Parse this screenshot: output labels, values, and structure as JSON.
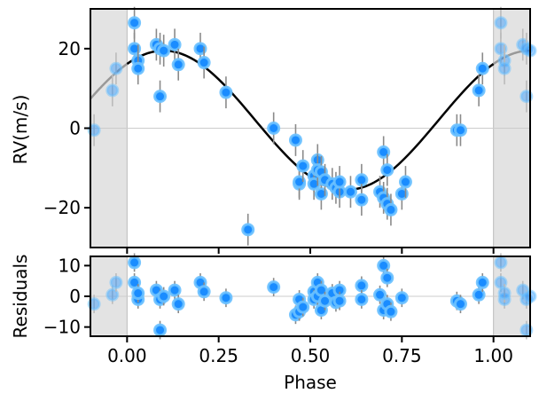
{
  "chart_data": [
    {
      "type": "scatter",
      "panel": "rv",
      "xlabel": "",
      "ylabel": "RV(m/s)",
      "xlim": [
        -0.1,
        1.1
      ],
      "ylim": [
        -30,
        30
      ],
      "grid": false,
      "shaded_regions": [
        [
          -0.1,
          0.0
        ],
        [
          1.0,
          1.1
        ]
      ],
      "yticks": [
        -20,
        0,
        20
      ],
      "ytick_labels": [
        "−20",
        "0",
        "20"
      ],
      "series": [
        {
          "name": "model",
          "kind": "line",
          "color": "#000000",
          "function": "2 + 17.5*sin(2*pi*(phase-0.85))"
        },
        {
          "name": "RV data",
          "kind": "points",
          "color": "#1a8cff",
          "x": [
            0.02,
            0.02,
            0.03,
            0.03,
            0.08,
            0.09,
            0.09,
            0.1,
            0.13,
            0.14,
            0.2,
            0.21,
            0.27,
            0.33,
            0.4,
            0.46,
            0.47,
            0.47,
            0.48,
            0.51,
            0.51,
            0.52,
            0.52,
            0.53,
            0.53,
            0.54,
            0.56,
            0.57,
            0.58,
            0.58,
            0.61,
            0.64,
            0.64,
            0.69,
            0.7,
            0.7,
            0.71,
            0.71,
            0.72,
            0.75,
            0.76,
            0.9,
            0.91,
            0.96,
            0.97
          ],
          "y": [
            26.5,
            20,
            17,
            15,
            21,
            8,
            20,
            19.5,
            21,
            16,
            20,
            16.5,
            9,
            -25.5,
            0,
            -3,
            -14,
            -13.5,
            -9.5,
            -12,
            -14,
            -8,
            -10.5,
            -16.5,
            -11,
            -13,
            -14,
            -15,
            -16,
            -13.5,
            -16,
            -13,
            -18,
            -16,
            -17.5,
            -6,
            -10.5,
            -19,
            -20.5,
            -16.5,
            -13.5,
            -0.5,
            -0.5,
            9.5,
            15
          ],
          "err": [
            4,
            4,
            4,
            4,
            4,
            4,
            4,
            4,
            4,
            4,
            4,
            4,
            4,
            4,
            4,
            4,
            4,
            4,
            4,
            4,
            4,
            4,
            4,
            4,
            4,
            4,
            4,
            4,
            4,
            4,
            4,
            4,
            4,
            4,
            4,
            4,
            4,
            4,
            4,
            4,
            4,
            4,
            4,
            4,
            4
          ]
        },
        {
          "name": "RV data (wrapped)",
          "kind": "points-faded",
          "color": "#1a8cff",
          "x": [
            -0.09,
            -0.04,
            -0.03,
            1.02,
            1.02,
            1.03,
            1.03,
            1.08,
            1.09,
            1.09,
            1.1
          ],
          "y": [
            -0.5,
            9.5,
            15,
            26.5,
            20,
            17,
            15,
            21,
            8,
            20,
            19.5
          ],
          "err": [
            4,
            4,
            4,
            4,
            4,
            4,
            4,
            4,
            4,
            4,
            4
          ]
        }
      ]
    },
    {
      "type": "scatter",
      "panel": "residuals",
      "xlabel": "Phase",
      "ylabel": "Residuals",
      "xlim": [
        -0.1,
        1.1
      ],
      "ylim": [
        -13,
        13
      ],
      "shaded_regions": [
        [
          -0.1,
          0.0
        ],
        [
          1.0,
          1.1
        ]
      ],
      "xticks": [
        0.0,
        0.25,
        0.5,
        0.75,
        1.0
      ],
      "xtick_labels": [
        "0.00",
        "0.25",
        "0.50",
        "0.75",
        "1.00"
      ],
      "yticks": [
        -10,
        0,
        10
      ],
      "ytick_labels": [
        "−10",
        "0",
        "10"
      ],
      "series": [
        {
          "name": "residuals",
          "kind": "points",
          "color": "#1a8cff",
          "x": [
            0.02,
            0.02,
            0.03,
            0.03,
            0.08,
            0.09,
            0.09,
            0.1,
            0.13,
            0.14,
            0.2,
            0.21,
            0.27,
            0.4,
            0.46,
            0.47,
            0.47,
            0.48,
            0.51,
            0.51,
            0.52,
            0.52,
            0.53,
            0.53,
            0.54,
            0.56,
            0.57,
            0.58,
            0.58,
            0.64,
            0.64,
            0.69,
            0.7,
            0.7,
            0.71,
            0.71,
            0.72,
            0.75,
            0.9,
            0.91,
            0.96,
            0.97
          ],
          "y": [
            11,
            4.5,
            -1,
            1,
            2,
            -11,
            -1,
            0,
            2,
            -2.5,
            4.5,
            1.5,
            -0.5,
            3,
            -6,
            -5,
            -1,
            -3.5,
            1.5,
            -1,
            4.5,
            0,
            -4.5,
            2,
            -1.5,
            1,
            -2,
            2,
            -1.5,
            3.5,
            -1,
            0.5,
            -4.5,
            10,
            -2.5,
            6,
            -5,
            -0.5,
            -1.5,
            -2.5,
            0.5,
            4.5
          ],
          "err": [
            3,
            3,
            3,
            3,
            3,
            3,
            3,
            3,
            3,
            3,
            3,
            3,
            3,
            3,
            3,
            3,
            3,
            3,
            3,
            3,
            3,
            3,
            3,
            3,
            3,
            3,
            3,
            3,
            3,
            3,
            3,
            3,
            3,
            3,
            3,
            3,
            3,
            3,
            3,
            3,
            3,
            3
          ]
        },
        {
          "name": "residuals (wrapped)",
          "kind": "points-faded",
          "color": "#1a8cff",
          "x": [
            -0.09,
            -0.04,
            -0.03,
            1.02,
            1.02,
            1.03,
            1.03,
            1.08,
            1.09,
            1.09,
            1.1
          ],
          "y": [
            -2.5,
            0.5,
            4.5,
            11,
            4.5,
            -1,
            1,
            2,
            -11,
            -1,
            0
          ],
          "err": [
            3,
            3,
            3,
            3,
            3,
            3,
            3,
            3,
            3,
            3,
            3
          ]
        }
      ]
    }
  ]
}
